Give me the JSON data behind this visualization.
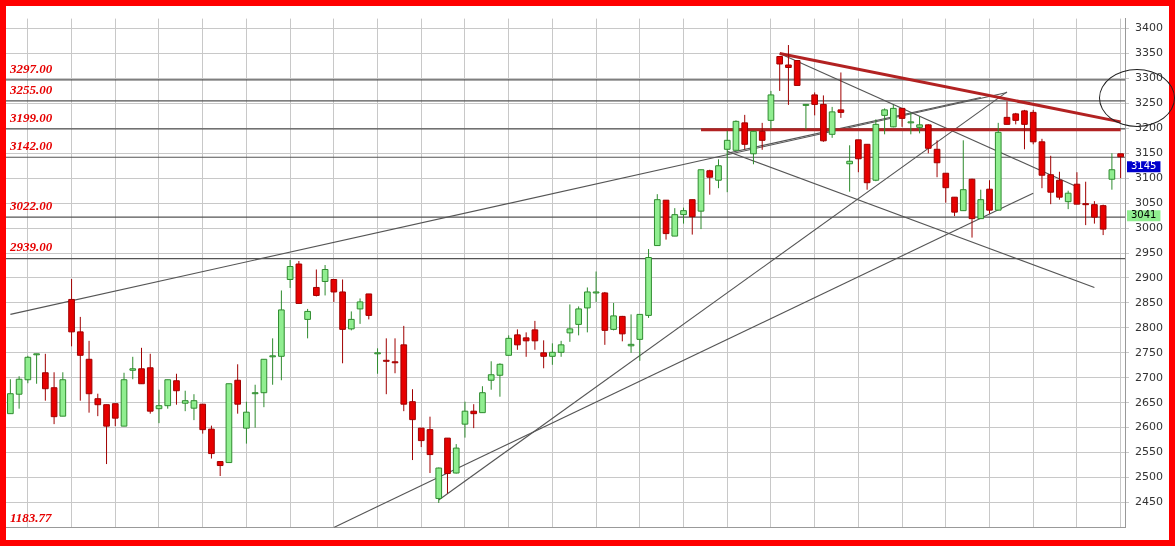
{
  "chart_data": {
    "type": "candlestick",
    "categories": [
      null,
      null,
      null,
      null,
      null,
      null,
      null,
      null,
      null,
      null,
      null,
      null,
      null,
      null,
      null,
      null,
      null,
      null,
      null,
      null,
      null,
      null,
      null,
      null,
      null,
      null,
      null,
      null,
      null,
      null,
      null,
      null,
      null,
      null,
      null,
      null,
      null,
      null,
      null,
      null,
      null,
      null,
      null,
      null,
      null,
      null,
      null,
      null,
      null,
      null,
      null,
      null,
      null,
      null,
      null,
      null,
      null,
      null,
      null,
      null,
      null,
      null,
      null,
      null,
      null,
      null,
      null,
      null,
      null,
      null,
      null,
      null,
      null,
      null,
      null,
      null,
      null,
      null,
      null,
      null,
      null,
      null,
      null,
      null,
      null,
      null,
      null,
      null,
      null,
      null,
      null,
      null,
      null,
      null,
      null,
      null,
      null,
      null,
      null,
      null,
      null,
      null,
      null,
      null,
      null,
      null,
      null,
      null,
      null,
      null,
      null,
      null,
      null,
      null,
      null,
      null,
      null,
      null,
      null,
      null,
      null,
      null,
      null,
      null,
      null,
      null,
      null,
      null
    ],
    "ohlc": [
      [
        2628,
        2697,
        2628,
        2668
      ],
      [
        2667,
        2703,
        2638,
        2697
      ],
      [
        2696,
        2744,
        2689,
        2741
      ],
      [
        2747,
        2748,
        2688,
        2748
      ],
      [
        2710,
        2748,
        2654,
        2678
      ],
      [
        2680,
        2711,
        2607,
        2622
      ],
      [
        2623,
        2711,
        2623,
        2696
      ],
      [
        2857,
        2898,
        2763,
        2792
      ],
      [
        2792,
        2822,
        2654,
        2745
      ],
      [
        2737,
        2774,
        2630,
        2668
      ],
      [
        2658,
        2668,
        2623,
        2646
      ],
      [
        2646,
        2646,
        2527,
        2603
      ],
      [
        2648,
        2648,
        2603,
        2619
      ],
      [
        2603,
        2710,
        2603,
        2696
      ],
      [
        2715,
        2742,
        2697,
        2718
      ],
      [
        2718,
        2760,
        2688,
        2688
      ],
      [
        2720,
        2748,
        2628,
        2633
      ],
      [
        2638,
        2676,
        2609,
        2644
      ],
      [
        2644,
        2696,
        2638,
        2696
      ],
      [
        2694,
        2708,
        2646,
        2674
      ],
      [
        2649,
        2674,
        2633,
        2654
      ],
      [
        2639,
        2667,
        2615,
        2654
      ],
      [
        2647,
        2647,
        2588,
        2596
      ],
      [
        2597,
        2604,
        2538,
        2548
      ],
      [
        2532,
        2532,
        2503,
        2524
      ],
      [
        2530,
        2688,
        2530,
        2688
      ],
      [
        2695,
        2727,
        2628,
        2647
      ],
      [
        2599,
        2652,
        2568,
        2631
      ],
      [
        2669,
        2686,
        2600,
        2670
      ],
      [
        2670,
        2737,
        2641,
        2737
      ],
      [
        2743,
        2779,
        2686,
        2744
      ],
      [
        2743,
        2875,
        2695,
        2836
      ],
      [
        2897,
        2936,
        2880,
        2923
      ],
      [
        2928,
        2934,
        2849,
        2849
      ],
      [
        2817,
        2838,
        2779,
        2833
      ],
      [
        2881,
        2917,
        2863,
        2865
      ],
      [
        2893,
        2926,
        2865,
        2917
      ],
      [
        2897,
        2897,
        2852,
        2872
      ],
      [
        2872,
        2897,
        2729,
        2797
      ],
      [
        2798,
        2833,
        2795,
        2817
      ],
      [
        2838,
        2859,
        2808,
        2852
      ],
      [
        2868,
        2868,
        2817,
        2825
      ],
      [
        2749,
        2759,
        2708,
        2750
      ],
      [
        2735,
        2779,
        2667,
        2733
      ],
      [
        2732,
        2779,
        2709,
        2730
      ],
      [
        2766,
        2804,
        2633,
        2647
      ],
      [
        2652,
        2677,
        2535,
        2616
      ],
      [
        2599,
        2599,
        2561,
        2574
      ],
      [
        2596,
        2622,
        2509,
        2546
      ],
      [
        2458,
        2520,
        2449,
        2519
      ],
      [
        2579,
        2579,
        2468,
        2508
      ],
      [
        2509,
        2567,
        2508,
        2559
      ],
      [
        2607,
        2652,
        2580,
        2633
      ],
      [
        2633,
        2647,
        2599,
        2628
      ],
      [
        2630,
        2683,
        2630,
        2670
      ],
      [
        2695,
        2733,
        2676,
        2706
      ],
      [
        2705,
        2729,
        2662,
        2727
      ],
      [
        2745,
        2785,
        2745,
        2779
      ],
      [
        2786,
        2797,
        2756,
        2766
      ],
      [
        2780,
        2791,
        2742,
        2774
      ],
      [
        2796,
        2814,
        2756,
        2774
      ],
      [
        2750,
        2775,
        2719,
        2743
      ],
      [
        2743,
        2769,
        2726,
        2751
      ],
      [
        2751,
        2774,
        2742,
        2766
      ],
      [
        2790,
        2847,
        2772,
        2798
      ],
      [
        2807,
        2843,
        2785,
        2838
      ],
      [
        2840,
        2881,
        2791,
        2872
      ],
      [
        2871,
        2913,
        2852,
        2872
      ],
      [
        2870,
        2872,
        2766,
        2795
      ],
      [
        2797,
        2850,
        2795,
        2824
      ],
      [
        2823,
        2824,
        2773,
        2788
      ],
      [
        2764,
        2827,
        2750,
        2767
      ],
      [
        2777,
        2827,
        2734,
        2827
      ],
      [
        2825,
        2958,
        2820,
        2941
      ],
      [
        2965,
        3068,
        2965,
        3057
      ],
      [
        3056,
        3056,
        2977,
        2989
      ],
      [
        2984,
        3040,
        2984,
        3027
      ],
      [
        3027,
        3041,
        3009,
        3035
      ],
      [
        3057,
        3057,
        2987,
        3023
      ],
      [
        3034,
        3117,
        2998,
        3117
      ],
      [
        3115,
        3117,
        3067,
        3102
      ],
      [
        3096,
        3138,
        3080,
        3125
      ],
      [
        3158,
        3195,
        3072,
        3176
      ],
      [
        3156,
        3216,
        3156,
        3214
      ],
      [
        3211,
        3227,
        3158,
        3168
      ],
      [
        3149,
        3195,
        3128,
        3194
      ],
      [
        3194,
        3211,
        3157,
        3176
      ],
      [
        3216,
        3275,
        3198,
        3267
      ],
      [
        3344,
        3344,
        3275,
        3329
      ],
      [
        3327,
        3367,
        3247,
        3322
      ],
      [
        3336,
        3336,
        3286,
        3286
      ],
      [
        3247,
        3248,
        3198,
        3248
      ],
      [
        3267,
        3272,
        3226,
        3248
      ],
      [
        3248,
        3266,
        3173,
        3175
      ],
      [
        3188,
        3243,
        3181,
        3233
      ],
      [
        3237,
        3312,
        3221,
        3232
      ],
      [
        3129,
        3166,
        3073,
        3134
      ],
      [
        3177,
        3177,
        3112,
        3139
      ],
      [
        3168,
        3168,
        3077,
        3091
      ],
      [
        3096,
        3218,
        3094,
        3208
      ],
      [
        3226,
        3240,
        3188,
        3237
      ],
      [
        3203,
        3247,
        3202,
        3240
      ],
      [
        3240,
        3240,
        3203,
        3220
      ],
      [
        3212,
        3231,
        3188,
        3213
      ],
      [
        3202,
        3224,
        3190,
        3207
      ],
      [
        3207,
        3208,
        3150,
        3160
      ],
      [
        3158,
        3176,
        3102,
        3131
      ],
      [
        3110,
        3110,
        3051,
        3081
      ],
      [
        3062,
        3062,
        3024,
        3032
      ],
      [
        3035,
        3176,
        3035,
        3077
      ],
      [
        3098,
        3099,
        2981,
        3019
      ],
      [
        3019,
        3077,
        3019,
        3057
      ],
      [
        3078,
        3096,
        3029,
        3036
      ],
      [
        3036,
        3211,
        3036,
        3192
      ],
      [
        3222,
        3254,
        3208,
        3208
      ],
      [
        3229,
        3231,
        3208,
        3216
      ],
      [
        3235,
        3237,
        3158,
        3208
      ],
      [
        3232,
        3237,
        3168,
        3173
      ],
      [
        3173,
        3179,
        3080,
        3106
      ],
      [
        3107,
        3145,
        3048,
        3072
      ],
      [
        3096,
        3113,
        3057,
        3062
      ],
      [
        3053,
        3075,
        3038,
        3070
      ],
      [
        3088,
        3112,
        3048,
        3048
      ],
      [
        3049,
        3093,
        3006,
        3047
      ],
      [
        3047,
        3054,
        3009,
        3022
      ],
      [
        3045,
        3047,
        2986,
        2998
      ],
      [
        3098,
        3150,
        3077,
        3117
      ],
      [
        3149,
        3149,
        3100,
        3143
      ]
    ],
    "series": [
      {
        "type": "line",
        "color": "#b22222",
        "values": [
          null,
          null,
          null,
          null,
          null,
          null,
          null,
          null,
          null,
          null,
          null,
          null,
          null,
          null,
          null,
          null,
          null,
          null,
          null,
          null,
          null,
          null,
          null,
          null,
          null,
          null,
          null,
          null,
          null,
          null,
          null,
          null,
          null,
          null,
          null,
          null,
          null,
          null,
          null,
          null,
          null,
          null,
          null,
          null,
          null,
          null,
          null,
          null,
          null,
          null,
          null,
          null,
          null,
          null,
          null,
          null,
          null,
          null,
          null,
          null,
          null,
          null,
          null,
          null,
          null,
          null,
          null,
          null,
          null,
          null,
          null,
          null,
          null,
          null,
          null,
          null,
          null,
          null,
          null,
          null,
          null,
          null,
          null,
          null,
          null,
          null,
          null,
          null,
          3350,
          null,
          null,
          null,
          null,
          null,
          null,
          null,
          null,
          null,
          null,
          null,
          null,
          null,
          null,
          null,
          null,
          null,
          null,
          null,
          null,
          null,
          null,
          null,
          null,
          null,
          null,
          null,
          null,
          null,
          null,
          null,
          null,
          null,
          null,
          null,
          null,
          null,
          null,
          3213
        ]
      },
      {
        "type": "line",
        "color": "#b22222",
        "values": [
          null,
          null,
          null,
          null,
          null,
          null,
          null,
          null,
          null,
          null,
          null,
          null,
          null,
          null,
          null,
          null,
          null,
          null,
          null,
          null,
          null,
          null,
          null,
          null,
          null,
          null,
          null,
          null,
          null,
          null,
          null,
          null,
          null,
          null,
          null,
          null,
          null,
          null,
          null,
          null,
          null,
          null,
          null,
          null,
          null,
          null,
          null,
          null,
          null,
          null,
          null,
          null,
          null,
          null,
          null,
          null,
          null,
          null,
          null,
          null,
          null,
          null,
          null,
          null,
          null,
          null,
          null,
          null,
          null,
          null,
          null,
          null,
          null,
          null,
          null,
          null,
          null,
          null,
          null,
          3197,
          null,
          null,
          null,
          null,
          null,
          null,
          null,
          null,
          null,
          null,
          null,
          null,
          null,
          null,
          null,
          null,
          null,
          null,
          null,
          null,
          null,
          null,
          null,
          null,
          null,
          null,
          null,
          null,
          null,
          null,
          null,
          null,
          null,
          null,
          null,
          null,
          null,
          null,
          null,
          null,
          null,
          null,
          null,
          null,
          null,
          null,
          null,
          3197
        ]
      },
      {
        "type": "line",
        "color": "#555555",
        "values": [
          2827,
          null,
          null,
          null,
          null,
          null,
          null,
          null,
          null,
          null,
          null,
          null,
          null,
          null,
          null,
          null,
          null,
          null,
          null,
          null,
          null,
          null,
          null,
          null,
          null,
          null,
          null,
          null,
          null,
          null,
          null,
          null,
          null,
          null,
          null,
          null,
          null,
          null,
          null,
          null,
          null,
          null,
          null,
          null,
          null,
          null,
          null,
          null,
          null,
          null,
          null,
          null,
          null,
          null,
          null,
          null,
          null,
          null,
          null,
          null,
          null,
          null,
          null,
          null,
          null,
          null,
          null,
          null,
          null,
          null,
          null,
          null,
          null,
          null,
          null,
          null,
          null,
          null,
          null,
          null,
          null,
          null,
          null,
          null,
          null,
          null,
          null,
          null,
          null,
          null,
          null,
          null,
          null,
          null,
          null,
          null,
          null,
          null,
          null,
          null,
          null,
          null,
          null,
          null,
          null,
          null,
          null,
          null,
          null,
          null,
          null,
          null,
          null,
          null,
          3272,
          null,
          null,
          null,
          null,
          null,
          null,
          null,
          null,
          null,
          null,
          null,
          null,
          null
        ]
      },
      {
        "type": "line",
        "color": "#555555",
        "values": [
          null,
          null,
          null,
          null,
          null,
          null,
          null,
          null,
          null,
          null,
          null,
          null,
          null,
          null,
          null,
          null,
          null,
          null,
          null,
          null,
          null,
          null,
          null,
          null,
          null,
          null,
          null,
          null,
          null,
          null,
          null,
          null,
          null,
          null,
          null,
          null,
          null,
          null,
          null,
          null,
          null,
          null,
          null,
          null,
          null,
          null,
          null,
          null,
          null,
          2455,
          null,
          null,
          null,
          null,
          null,
          null,
          null,
          null,
          null,
          null,
          null,
          null,
          null,
          null,
          null,
          null,
          null,
          null,
          null,
          null,
          null,
          null,
          null,
          null,
          null,
          null,
          null,
          null,
          null,
          null,
          null,
          null,
          null,
          null,
          null,
          null,
          null,
          null,
          null,
          null,
          null,
          null,
          null,
          null,
          null,
          null,
          null,
          null,
          null,
          null,
          null,
          null,
          null,
          null,
          null,
          null,
          null,
          null,
          null,
          null,
          null,
          null,
          null,
          null,
          3273,
          null,
          null,
          null,
          null,
          null,
          null,
          null,
          null,
          null,
          null,
          null,
          null,
          null
        ]
      },
      {
        "type": "line",
        "color": "#555555",
        "values": [
          null,
          null,
          null,
          null,
          null,
          null,
          null,
          null,
          null,
          null,
          null,
          null,
          null,
          null,
          null,
          null,
          null,
          null,
          null,
          null,
          null,
          null,
          null,
          null,
          null,
          null,
          null,
          null,
          null,
          null,
          null,
          null,
          null,
          null,
          null,
          null,
          null,
          2400,
          null,
          null,
          null,
          null,
          null,
          null,
          null,
          null,
          null,
          null,
          null,
          null,
          null,
          null,
          null,
          null,
          null,
          null,
          null,
          null,
          null,
          null,
          null,
          null,
          null,
          null,
          null,
          null,
          null,
          null,
          null,
          null,
          null,
          null,
          null,
          null,
          null,
          null,
          null,
          null,
          null,
          null,
          null,
          null,
          null,
          null,
          null,
          null,
          null,
          null,
          null,
          null,
          null,
          null,
          null,
          null,
          null,
          null,
          null,
          null,
          null,
          null,
          null,
          null,
          null,
          null,
          null,
          null,
          null,
          null,
          null,
          null,
          null,
          null,
          null,
          null,
          null,
          null,
          null,
          3070,
          null,
          null,
          null,
          null,
          null,
          null,
          null,
          null,
          null,
          null
        ]
      },
      {
        "type": "line",
        "color": "#555555",
        "values": [
          null,
          null,
          null,
          null,
          null,
          null,
          null,
          null,
          null,
          null,
          null,
          null,
          null,
          null,
          null,
          null,
          null,
          null,
          null,
          null,
          null,
          null,
          null,
          null,
          null,
          null,
          null,
          null,
          null,
          null,
          null,
          null,
          null,
          null,
          null,
          null,
          null,
          null,
          null,
          null,
          null,
          null,
          null,
          null,
          null,
          null,
          null,
          null,
          null,
          null,
          null,
          null,
          null,
          null,
          null,
          null,
          null,
          null,
          null,
          null,
          null,
          null,
          null,
          null,
          null,
          null,
          null,
          null,
          null,
          null,
          null,
          null,
          null,
          null,
          null,
          null,
          null,
          null,
          null,
          null,
          null,
          null,
          null,
          null,
          null,
          null,
          null,
          null,
          3350,
          null,
          null,
          null,
          null,
          null,
          null,
          null,
          null,
          null,
          null,
          null,
          null,
          null,
          null,
          null,
          null,
          null,
          null,
          null,
          null,
          null,
          null,
          null,
          null,
          null,
          null,
          null,
          null,
          null,
          null,
          null,
          null,
          null,
          3083,
          null,
          null,
          null,
          null,
          null
        ]
      },
      {
        "type": "line",
        "color": "#555555",
        "values": [
          null,
          null,
          null,
          null,
          null,
          null,
          null,
          null,
          null,
          null,
          null,
          null,
          null,
          null,
          null,
          null,
          null,
          null,
          null,
          null,
          null,
          null,
          null,
          null,
          null,
          null,
          null,
          null,
          null,
          null,
          null,
          null,
          null,
          null,
          null,
          null,
          null,
          null,
          null,
          null,
          null,
          null,
          null,
          null,
          null,
          null,
          null,
          null,
          null,
          null,
          null,
          null,
          null,
          null,
          null,
          null,
          null,
          null,
          null,
          null,
          null,
          null,
          null,
          null,
          null,
          null,
          null,
          null,
          null,
          null,
          null,
          null,
          null,
          null,
          null,
          null,
          null,
          null,
          null,
          null,
          null,
          null,
          3154,
          null,
          null,
          null,
          null,
          null,
          null,
          null,
          null,
          null,
          null,
          null,
          null,
          null,
          null,
          null,
          null,
          null,
          null,
          null,
          null,
          null,
          null,
          null,
          null,
          null,
          null,
          null,
          null,
          null,
          null,
          null,
          null,
          null,
          null,
          null,
          null,
          null,
          null,
          null,
          null,
          null,
          2881,
          null,
          null,
          null
        ]
      },
      {
        "type": "line",
        "color": "#555555",
        "values": [
          null,
          null,
          null,
          null,
          null,
          null,
          null,
          null,
          null,
          null,
          null,
          null,
          null,
          null,
          null,
          null,
          null,
          null,
          null,
          null,
          null,
          null,
          null,
          null,
          null,
          null,
          null,
          null,
          null,
          null,
          null,
          null,
          null,
          null,
          null,
          null,
          null,
          null,
          null,
          null,
          null,
          null,
          null,
          null,
          null,
          null,
          null,
          null,
          null,
          null,
          null,
          null,
          null,
          null,
          null,
          null,
          null,
          null,
          null,
          null,
          null,
          null,
          null,
          null,
          null,
          null,
          null,
          null,
          null,
          null,
          null,
          null,
          null,
          null,
          null,
          null,
          null,
          null,
          null,
          null,
          null,
          null,
          3150,
          null,
          null,
          null,
          null,
          null,
          null,
          null,
          null,
          null,
          null,
          null,
          null,
          null,
          null,
          null,
          null,
          null,
          null,
          null,
          null,
          null,
          null,
          null,
          null,
          null,
          null,
          null,
          null,
          3262,
          null,
          null,
          null,
          null,
          null,
          null,
          null,
          null,
          null,
          null,
          null,
          null,
          null,
          null,
          null,
          null
        ]
      }
    ],
    "ylim": [
      2400,
      3420
    ],
    "yticks": [
      2450,
      2500,
      2550,
      2600,
      2650,
      2700,
      2750,
      2800,
      2850,
      2900,
      2950,
      3000,
      3050,
      3100,
      3150,
      3200,
      3250,
      3300,
      3350,
      3400
    ],
    "tick_labels": "y",
    "grid": true,
    "ref_lines": [
      {
        "axis": "y",
        "value": 3297,
        "label": "3297.00",
        "color": "#555555"
      },
      {
        "axis": "y",
        "value": 3255,
        "label": "3255.00",
        "color": "#555555"
      },
      {
        "axis": "y",
        "value": 3199,
        "label": "3199.00",
        "color": "#555555"
      },
      {
        "axis": "y",
        "value": 3142,
        "label": "3142.00",
        "color": "#555555"
      },
      {
        "axis": "y",
        "value": 3022,
        "label": "3022.00",
        "color": "#555555"
      },
      {
        "axis": "y",
        "value": 2939,
        "label": "2939.00",
        "color": "#555555"
      }
    ],
    "annotations": [
      "1183.77",
      "3145",
      "3041"
    ]
  }
}
